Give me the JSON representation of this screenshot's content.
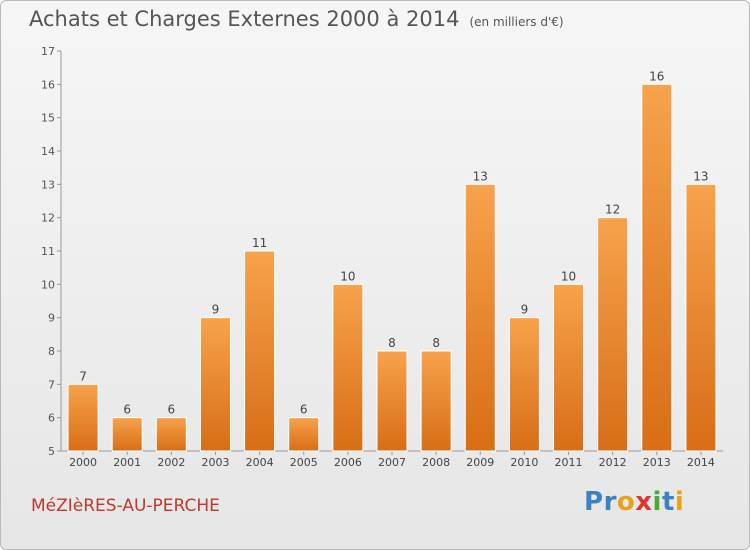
{
  "header": {
    "title": "Achats et Charges Externes 2000 à 2014",
    "subtitle": "(en milliers d'€)"
  },
  "footer": {
    "commune": "MéZIèRES-AU-PERCHE",
    "logo": "Proxiti"
  },
  "colors": {
    "bar_light": "#f7a24c",
    "bar_dark": "#d86e16",
    "commune_text": "#c0392b",
    "logo_letters": [
      "#3b82c4",
      "#3b82c4",
      "#e8a31a",
      "#e0342c",
      "#4aa83c",
      "#3b82c4",
      "#e8a31a"
    ]
  },
  "chart_data": {
    "type": "bar",
    "title": "Achats et Charges Externes 2000 à 2014",
    "subtitle": "(en milliers d'€)",
    "xlabel": "",
    "ylabel": "",
    "categories": [
      "2000",
      "2001",
      "2002",
      "2003",
      "2004",
      "2005",
      "2006",
      "2007",
      "2008",
      "2009",
      "2010",
      "2011",
      "2012",
      "2013",
      "2014"
    ],
    "values": [
      7,
      6,
      6,
      9,
      11,
      6,
      10,
      8,
      8,
      13,
      9,
      10,
      12,
      16,
      13
    ],
    "ylim": [
      5,
      17
    ],
    "yticks": [
      5,
      6,
      7,
      8,
      9,
      10,
      11,
      12,
      13,
      14,
      15,
      16,
      17
    ],
    "grid": false,
    "data_labels": true
  }
}
